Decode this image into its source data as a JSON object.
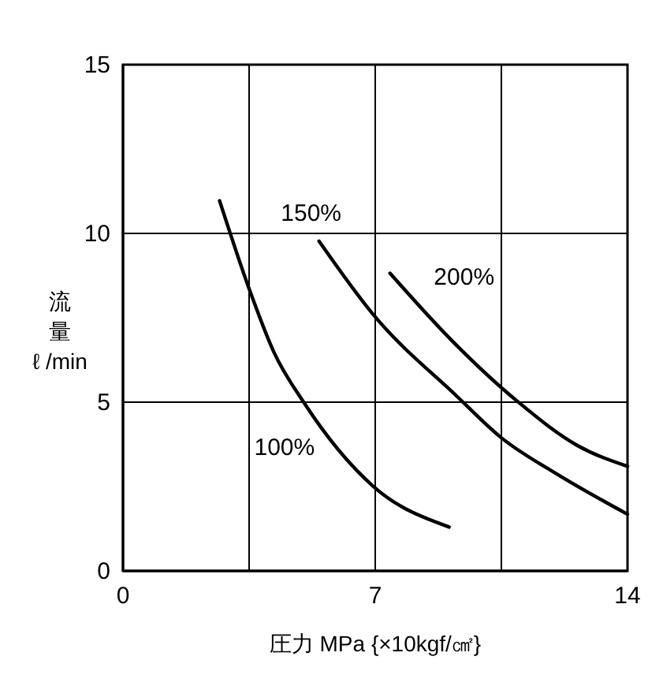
{
  "chart_data": {
    "type": "line",
    "xlabel": "圧力 MPa {×10kgf/㎠}",
    "ylabel": "流量ℓ /min",
    "xlim": [
      0,
      14
    ],
    "ylim": [
      0,
      15
    ],
    "xticks": [
      0,
      {
        "value": 3.5,
        "label": null
      },
      7,
      {
        "value": 10.5,
        "label": null
      },
      14
    ],
    "yticks": [
      0,
      5,
      10,
      15
    ],
    "grid": true,
    "legend": false,
    "marker": "none",
    "line_style": "solid",
    "series": [
      {
        "name": "100%",
        "color": "#000000",
        "x": [
          2.68,
          3.49,
          4.18,
          5.05,
          6.94,
          9.05
        ],
        "values": [
          10.97,
          8.39,
          6.5,
          4.94,
          2.51,
          1.3
        ]
      },
      {
        "name": "150%",
        "color": "#000000",
        "x": [
          5.44,
          6.94,
          9.27,
          10.47,
          12.04,
          14
        ],
        "values": [
          9.77,
          7.6,
          5.17,
          3.97,
          2.87,
          1.68
        ]
      },
      {
        "name": "200%",
        "color": "#000000",
        "x": [
          7.41,
          9.13,
          10.95,
          12.62,
          14
        ],
        "values": [
          8.82,
          6.82,
          5.02,
          3.71,
          3.1
        ]
      }
    ]
  }
}
